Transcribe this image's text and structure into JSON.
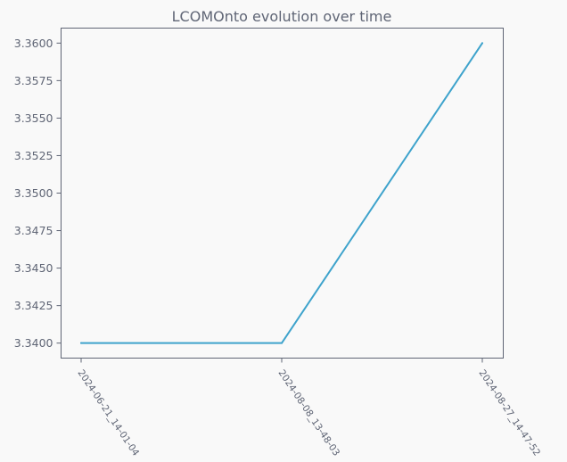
{
  "chart_data": {
    "type": "line",
    "title": "LCOMOnto evolution over time",
    "xlabel": "",
    "ylabel": "",
    "categories": [
      "2024-06-21_14-01-04",
      "2024-08-08_13-48-03",
      "2024-08-27_14-47-52"
    ],
    "series": [
      {
        "values": [
          3.34,
          3.34,
          3.36
        ]
      }
    ],
    "ylim": [
      3.339,
      3.361
    ],
    "yticks": [
      3.34,
      3.3425,
      3.345,
      3.3475,
      3.35,
      3.3525,
      3.355,
      3.3575,
      3.36
    ],
    "ytick_labels": [
      "3.3400",
      "3.3425",
      "3.3450",
      "3.3475",
      "3.3500",
      "3.3525",
      "3.3550",
      "3.3575",
      "3.3600"
    ],
    "grid": false,
    "legend": "none"
  },
  "colors": {
    "background": "#f9f9f9",
    "axes": "#5f6575",
    "text": "#5f6575",
    "line": "#3ea3cc"
  }
}
